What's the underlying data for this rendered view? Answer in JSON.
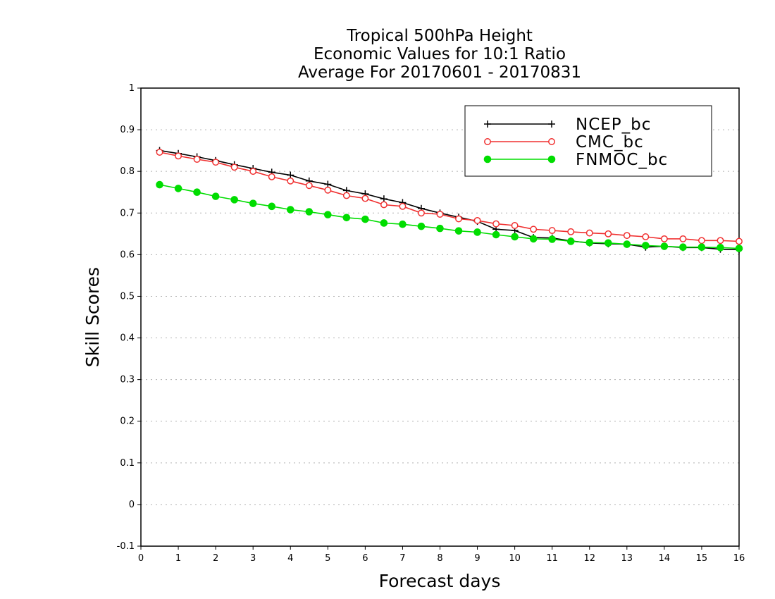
{
  "chart_data": {
    "type": "line",
    "title": [
      "Tropical 500hPa Height",
      "Economic Values for 10:1 Ratio",
      "Average For 20170601 - 20170831"
    ],
    "xlabel": "Forecast days",
    "ylabel": "Skill Scores",
    "xlim": [
      0,
      16
    ],
    "ylim": [
      -0.1,
      1
    ],
    "x_ticks": [
      "0",
      "1",
      "2",
      "3",
      "4",
      "5",
      "6",
      "7",
      "8",
      "9",
      "10",
      "11",
      "12",
      "13",
      "14",
      "15",
      "16"
    ],
    "y_ticks": [
      "-0.1",
      "0",
      "0.1",
      "0.2",
      "0.3",
      "0.4",
      "0.5",
      "0.6",
      "0.7",
      "0.8",
      "0.9",
      "1"
    ],
    "grid": "horizontal-dotted",
    "legend_position": "top-right",
    "x": [
      0.5,
      1,
      1.5,
      2,
      2.5,
      3,
      3.5,
      4,
      4.5,
      5,
      5.5,
      6,
      6.5,
      7,
      7.5,
      8,
      8.5,
      9,
      9.5,
      10,
      10.5,
      11,
      11.5,
      12,
      12.5,
      13,
      13.5,
      14,
      14.5,
      15,
      15.5,
      16
    ],
    "series": [
      {
        "name": "NCEP_bc",
        "color": "#000000",
        "marker": "plus",
        "values": [
          0.85,
          0.843,
          0.835,
          0.826,
          0.816,
          0.807,
          0.798,
          0.791,
          0.777,
          0.769,
          0.754,
          0.746,
          0.734,
          0.725,
          0.711,
          0.7,
          0.69,
          0.68,
          0.661,
          0.658,
          0.641,
          0.64,
          0.633,
          0.628,
          0.626,
          0.625,
          0.618,
          0.62,
          0.617,
          0.617,
          0.613,
          0.612
        ]
      },
      {
        "name": "CMC_bc",
        "color": "#f03030",
        "marker": "open-circle",
        "values": [
          0.846,
          0.837,
          0.829,
          0.822,
          0.81,
          0.8,
          0.787,
          0.777,
          0.766,
          0.755,
          0.742,
          0.735,
          0.72,
          0.716,
          0.7,
          0.697,
          0.686,
          0.682,
          0.674,
          0.67,
          0.661,
          0.658,
          0.655,
          0.652,
          0.65,
          0.646,
          0.643,
          0.638,
          0.638,
          0.634,
          0.634,
          0.632
        ]
      },
      {
        "name": "FNMOC_bc",
        "color": "#00dd00",
        "marker": "filled-circle",
        "values": [
          0.768,
          0.759,
          0.75,
          0.74,
          0.732,
          0.723,
          0.716,
          0.708,
          0.703,
          0.696,
          0.689,
          0.685,
          0.676,
          0.673,
          0.668,
          0.663,
          0.657,
          0.654,
          0.648,
          0.643,
          0.638,
          0.637,
          0.632,
          0.629,
          0.628,
          0.625,
          0.622,
          0.62,
          0.618,
          0.618,
          0.617,
          0.615
        ]
      }
    ]
  }
}
